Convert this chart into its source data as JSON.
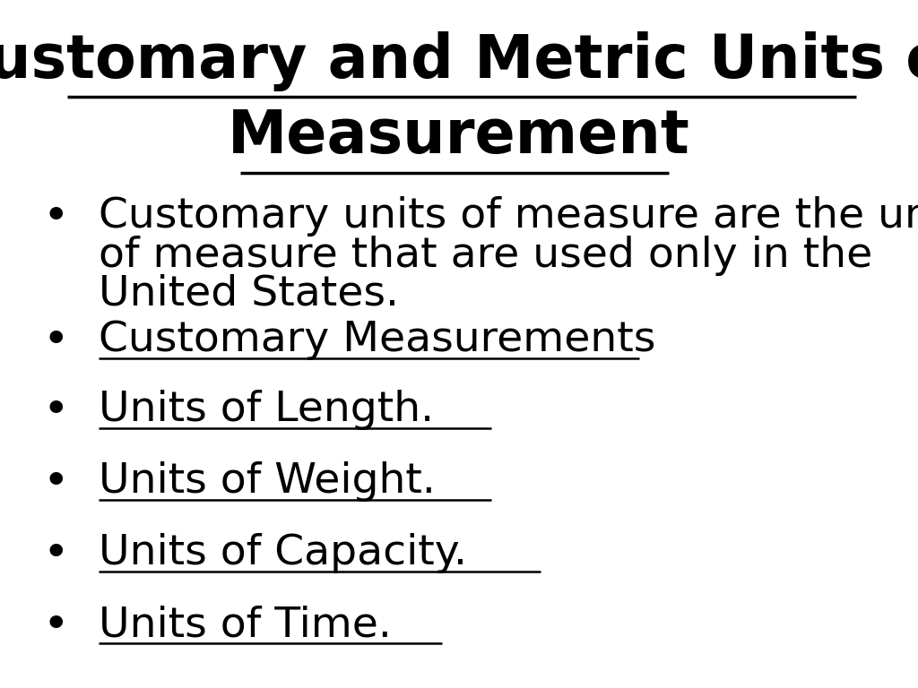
{
  "background_color": "#ffffff",
  "title_line1": "Customary and Metric Units of",
  "title_line2": "Measurement",
  "title_fontsize": 48,
  "title_color": "#000000",
  "bullet_items": [
    {
      "lines": [
        "Customary units of measure are the units",
        "of measure that are used only in the",
        "United States."
      ],
      "underline": false,
      "fontsize": 34
    },
    {
      "lines": [
        "Customary Measurements"
      ],
      "underline": true,
      "fontsize": 34
    },
    {
      "lines": [
        "Units of Length."
      ],
      "underline": true,
      "fontsize": 34
    },
    {
      "lines": [
        "Units of Weight."
      ],
      "underline": true,
      "fontsize": 34
    },
    {
      "lines": [
        "Units of Capacity."
      ],
      "underline": true,
      "fontsize": 34
    },
    {
      "lines": [
        "Units of Time."
      ],
      "underline": true,
      "fontsize": 34
    }
  ],
  "bullet_char": "•",
  "bullet_color": "#000000",
  "text_color": "#000000",
  "fig_width": 10.24,
  "fig_height": 7.68,
  "dpi": 100
}
